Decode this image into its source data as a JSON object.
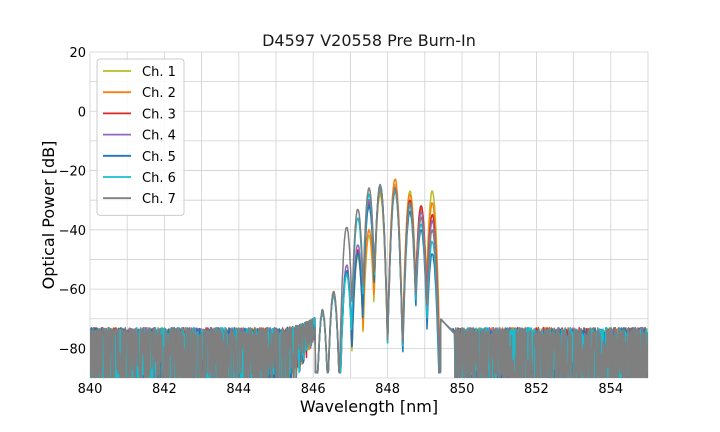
{
  "chart_data": {
    "type": "line",
    "title": "D4597 V20558 Pre Burn-In",
    "xlabel": "Wavelength [nm]",
    "ylabel": "Optical Power [dB]",
    "xlim": [
      840,
      855
    ],
    "ylim": [
      -90,
      20
    ],
    "xticks": [
      840,
      842,
      844,
      846,
      848,
      850,
      852,
      854
    ],
    "yticks": [
      20,
      0,
      -20,
      -40,
      -60,
      -80
    ],
    "xtick_labels": [
      "840",
      "842",
      "844",
      "846",
      "848",
      "850",
      "852",
      "854"
    ],
    "ytick_labels": [
      "20",
      "0",
      "−20",
      "−40",
      "−60",
      "−80"
    ],
    "grid": true,
    "legend_position": "top-left",
    "noise_floor": -73,
    "series": [
      {
        "name": "Ch. 1",
        "color": "#bcbd22",
        "peaks": [
          [
            846.25,
            -68
          ],
          [
            846.55,
            -61
          ],
          [
            846.9,
            -55
          ],
          [
            847.2,
            -49
          ],
          [
            847.5,
            -42
          ],
          [
            847.8,
            -28
          ],
          [
            848.2,
            -25
          ],
          [
            848.6,
            -27
          ],
          [
            848.9,
            -33
          ],
          [
            849.2,
            -27
          ]
        ]
      },
      {
        "name": "Ch. 2",
        "color": "#ff7f0e",
        "peaks": [
          [
            846.25,
            -68
          ],
          [
            846.55,
            -61
          ],
          [
            846.9,
            -54
          ],
          [
            847.2,
            -48
          ],
          [
            847.5,
            -40
          ],
          [
            847.8,
            -27
          ],
          [
            848.2,
            -23
          ],
          [
            848.6,
            -28
          ],
          [
            848.9,
            -32
          ],
          [
            849.2,
            -31
          ]
        ]
      },
      {
        "name": "Ch. 3",
        "color": "#d62728",
        "peaks": [
          [
            846.25,
            -68
          ],
          [
            846.55,
            -62
          ],
          [
            846.9,
            -54
          ],
          [
            847.2,
            -47
          ],
          [
            847.5,
            -31
          ],
          [
            847.8,
            -26
          ],
          [
            848.2,
            -26
          ],
          [
            848.6,
            -30
          ],
          [
            848.9,
            -32
          ],
          [
            849.2,
            -35
          ]
        ]
      },
      {
        "name": "Ch. 4",
        "color": "#9467bd",
        "peaks": [
          [
            846.25,
            -68
          ],
          [
            846.55,
            -62
          ],
          [
            846.9,
            -52
          ],
          [
            847.2,
            -45
          ],
          [
            847.5,
            -30
          ],
          [
            847.8,
            -25
          ],
          [
            848.2,
            -26
          ],
          [
            848.6,
            -31
          ],
          [
            848.9,
            -34
          ],
          [
            849.2,
            -37
          ]
        ]
      },
      {
        "name": "Ch. 5",
        "color": "#1f77b4",
        "peaks": [
          [
            846.25,
            -68
          ],
          [
            846.55,
            -62
          ],
          [
            846.9,
            -54
          ],
          [
            847.2,
            -48
          ],
          [
            847.5,
            -32
          ],
          [
            847.8,
            -25
          ],
          [
            848.2,
            -27
          ],
          [
            848.6,
            -34
          ],
          [
            848.9,
            -40
          ],
          [
            849.2,
            -48
          ]
        ]
      },
      {
        "name": "Ch. 6",
        "color": "#17becf",
        "peaks": [
          [
            846.25,
            -68
          ],
          [
            846.55,
            -62
          ],
          [
            846.9,
            -55
          ],
          [
            847.2,
            -36
          ],
          [
            847.5,
            -28
          ],
          [
            847.8,
            -26
          ],
          [
            848.2,
            -27
          ],
          [
            848.6,
            -32
          ],
          [
            848.9,
            -38
          ],
          [
            849.2,
            -44
          ]
        ]
      },
      {
        "name": "Ch. 7",
        "color": "#7f7f7f",
        "peaks": [
          [
            846.25,
            -67
          ],
          [
            846.55,
            -61
          ],
          [
            846.9,
            -39
          ],
          [
            847.2,
            -33
          ],
          [
            847.5,
            -26
          ],
          [
            847.8,
            -25
          ],
          [
            848.2,
            -26
          ],
          [
            848.6,
            -31
          ],
          [
            848.9,
            -36
          ],
          [
            849.2,
            -40
          ]
        ]
      }
    ]
  }
}
